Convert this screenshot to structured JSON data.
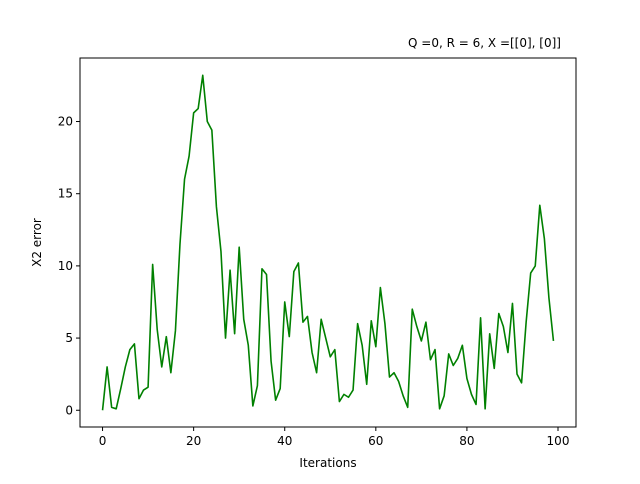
{
  "chart_data": {
    "type": "line",
    "title": "Q =0, R = 6, X =[[0], [0]]",
    "xlabel": "Iterations",
    "ylabel": "X2 error",
    "xlim": [
      -4.95,
      103.95
    ],
    "ylim": [
      -1.16,
      24.4
    ],
    "xticks": [
      0,
      20,
      40,
      60,
      80,
      100
    ],
    "yticks": [
      0,
      5,
      10,
      15,
      20
    ],
    "xtick_labels": [
      "0",
      "20",
      "40",
      "60",
      "80",
      "100"
    ],
    "ytick_labels": [
      "0",
      "5",
      "10",
      "15",
      "20"
    ],
    "grid": false,
    "legend": "none",
    "series": [
      {
        "color": "#008000",
        "x": [
          0,
          1,
          2,
          3,
          4,
          5,
          6,
          7,
          8,
          9,
          10,
          11,
          12,
          13,
          14,
          15,
          16,
          17,
          18,
          19,
          20,
          21,
          22,
          23,
          24,
          25,
          26,
          27,
          28,
          29,
          30,
          31,
          32,
          33,
          34,
          35,
          36,
          37,
          38,
          39,
          40,
          41,
          42,
          43,
          44,
          45,
          46,
          47,
          48,
          49,
          50,
          51,
          52,
          53,
          54,
          55,
          56,
          57,
          58,
          59,
          60,
          61,
          62,
          63,
          64,
          65,
          66,
          67,
          68,
          69,
          70,
          71,
          72,
          73,
          74,
          75,
          76,
          77,
          78,
          79,
          80,
          81,
          82,
          83,
          84,
          85,
          86,
          87,
          88,
          89,
          90,
          91,
          92,
          93,
          94,
          95,
          96,
          97,
          98,
          99
        ],
        "values": [
          0,
          3.0,
          0.2,
          0.1,
          1.5,
          3.0,
          4.2,
          4.6,
          0.8,
          1.4,
          1.6,
          10.1,
          5.6,
          3.0,
          5.1,
          2.6,
          5.5,
          11.5,
          16.0,
          17.6,
          20.6,
          20.9,
          23.2,
          20.0,
          19.4,
          14.1,
          11.0,
          5.0,
          9.7,
          5.3,
          11.3,
          6.3,
          4.5,
          0.3,
          1.7,
          9.8,
          9.4,
          3.4,
          0.7,
          1.5,
          7.5,
          5.1,
          9.6,
          10.2,
          6.1,
          6.5,
          4.0,
          2.6,
          6.3,
          5.0,
          3.7,
          4.2,
          0.6,
          1.1,
          0.9,
          1.4,
          6.0,
          4.5,
          1.8,
          6.2,
          4.4,
          8.5,
          6.0,
          2.3,
          2.6,
          2.0,
          1.0,
          0.2,
          7.0,
          5.8,
          4.8,
          6.1,
          3.5,
          4.2,
          0.1,
          1.0,
          3.9,
          3.1,
          3.6,
          4.5,
          2.2,
          1.1,
          0.4,
          6.4,
          0.1,
          5.3,
          2.9,
          6.7,
          5.8,
          4.0,
          7.4,
          2.5,
          1.9,
          6.1,
          9.5,
          10.0,
          14.2,
          11.9,
          7.8,
          4.8
        ]
      }
    ]
  }
}
